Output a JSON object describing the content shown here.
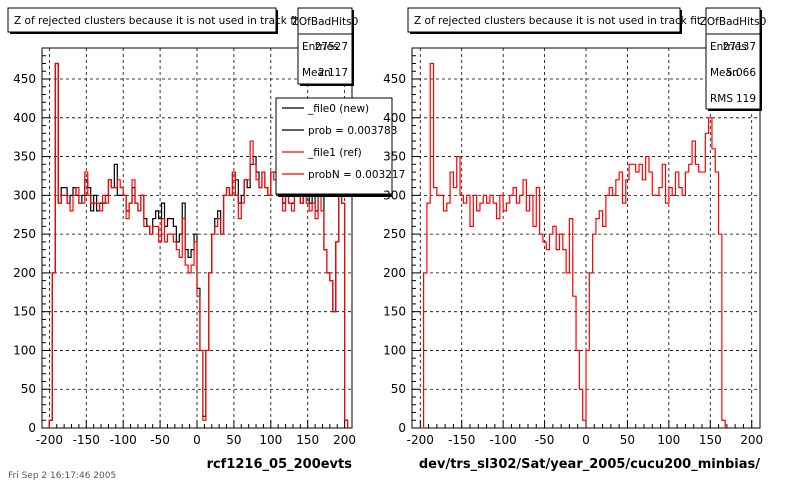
{
  "chart_data": [
    {
      "type": "bar",
      "title": "Z of rejected clusters  because it is not used in track fit",
      "xlabel": "rcf1216_05_200evts",
      "ylabel": "",
      "xlim": [
        -210,
        210
      ],
      "ylim": [
        0,
        490
      ],
      "grid": true,
      "xticks": [
        "-200",
        "-150",
        "-100",
        "-50",
        "0",
        "50",
        "100",
        "150",
        "200"
      ],
      "yticks": [
        "0",
        "50",
        "100",
        "150",
        "200",
        "250",
        "300",
        "350",
        "400",
        "450"
      ],
      "stats": {
        "name": "ZOfBadHits0",
        "rows": [
          {
            "label": "Entries",
            "value": "27527"
          },
          {
            "label": "Mean",
            "value": "2.117"
          }
        ]
      },
      "legend": {
        "placement": "top-right",
        "entries": [
          {
            "text": "_file0 (new)",
            "color": "#000000"
          },
          {
            "text": "prob = 0.003783",
            "color": "#000000"
          },
          {
            "text": "_file1 (ref)",
            "color": "#ff0000"
          },
          {
            "text": "probN = 0.003217",
            "color": "#ff0000"
          }
        ]
      },
      "series": [
        {
          "name": "_file0 (new)",
          "color": "#000000",
          "x_start": -200,
          "bin_width": 4,
          "values": [
            10,
            200,
            470,
            290,
            310,
            310,
            290,
            300,
            310,
            300,
            290,
            300,
            320,
            310,
            280,
            300,
            280,
            290,
            290,
            300,
            320,
            310,
            340,
            300,
            300,
            300,
            280,
            290,
            310,
            290,
            280,
            300,
            270,
            260,
            250,
            270,
            280,
            270,
            290,
            260,
            270,
            270,
            260,
            240,
            250,
            290,
            230,
            220,
            230,
            250,
            180,
            100,
            15,
            100,
            200,
            250,
            270,
            280,
            250,
            300,
            310,
            300,
            330,
            320,
            290,
            300,
            320,
            310,
            340,
            350,
            330,
            310,
            330,
            310,
            300,
            330,
            330,
            300,
            300,
            290,
            300,
            290,
            290,
            300,
            310,
            290,
            300,
            300,
            290,
            300,
            280,
            300,
            300,
            230,
            200,
            190,
            150,
            240,
            310,
            290,
            10
          ]
        },
        {
          "name": "_file1 (ref)",
          "color": "#ff0000",
          "x_start": -200,
          "bin_width": 4,
          "values": [
            10,
            200,
            470,
            290,
            300,
            300,
            290,
            280,
            300,
            310,
            290,
            290,
            330,
            300,
            290,
            290,
            290,
            280,
            300,
            290,
            320,
            310,
            310,
            320,
            310,
            300,
            270,
            290,
            320,
            290,
            280,
            300,
            260,
            260,
            250,
            260,
            260,
            240,
            270,
            240,
            250,
            250,
            240,
            230,
            220,
            270,
            210,
            200,
            210,
            240,
            170,
            100,
            10,
            100,
            200,
            250,
            260,
            270,
            250,
            300,
            310,
            300,
            330,
            300,
            270,
            290,
            320,
            320,
            370,
            340,
            320,
            310,
            330,
            310,
            300,
            330,
            320,
            300,
            300,
            280,
            300,
            290,
            280,
            300,
            310,
            290,
            300,
            290,
            280,
            290,
            270,
            300,
            280,
            230,
            200,
            190,
            150,
            240,
            310,
            290,
            10
          ]
        }
      ]
    },
    {
      "type": "bar",
      "title": "Z of rejected clusters  because it is not used in track fit",
      "xlabel": "dev/trs_sl302/Sat/year_2005/cucu200_minbias/",
      "ylabel": "",
      "xlim": [
        -210,
        210
      ],
      "ylim": [
        0,
        490
      ],
      "grid": true,
      "xticks": [
        "-200",
        "-150",
        "-100",
        "-50",
        "0",
        "50",
        "100",
        "150",
        "200"
      ],
      "yticks": [
        "0",
        "50",
        "100",
        "150",
        "200",
        "250",
        "300",
        "350",
        "400",
        "450"
      ],
      "stats": {
        "name": "ZOfBadHits0",
        "rows": [
          {
            "label": "Entries",
            "value": "27137"
          },
          {
            "label": "Mean",
            "value": "5.066"
          },
          {
            "label": "RMS",
            "value": "119"
          }
        ]
      },
      "series": [
        {
          "name": "",
          "color": "#ff0000",
          "x_start": -200,
          "bin_width": 4,
          "values": [
            0,
            200,
            290,
            470,
            310,
            300,
            300,
            280,
            290,
            330,
            310,
            350,
            300,
            290,
            300,
            260,
            300,
            280,
            290,
            300,
            290,
            300,
            290,
            270,
            300,
            280,
            290,
            300,
            310,
            290,
            300,
            320,
            280,
            300,
            260,
            310,
            250,
            240,
            230,
            250,
            260,
            230,
            250,
            230,
            200,
            270,
            170,
            100,
            50,
            10,
            100,
            200,
            250,
            270,
            280,
            260,
            300,
            310,
            300,
            320,
            330,
            290,
            320,
            340,
            340,
            330,
            340,
            320,
            350,
            330,
            300,
            300,
            310,
            340,
            290,
            310,
            300,
            330,
            310,
            300,
            330,
            340,
            370,
            340,
            330,
            330,
            380,
            400,
            360,
            330,
            250,
            10
          ]
        }
      ]
    }
  ],
  "footer": {
    "stamp": "Fri Sep  2 16:17:46 2005"
  }
}
